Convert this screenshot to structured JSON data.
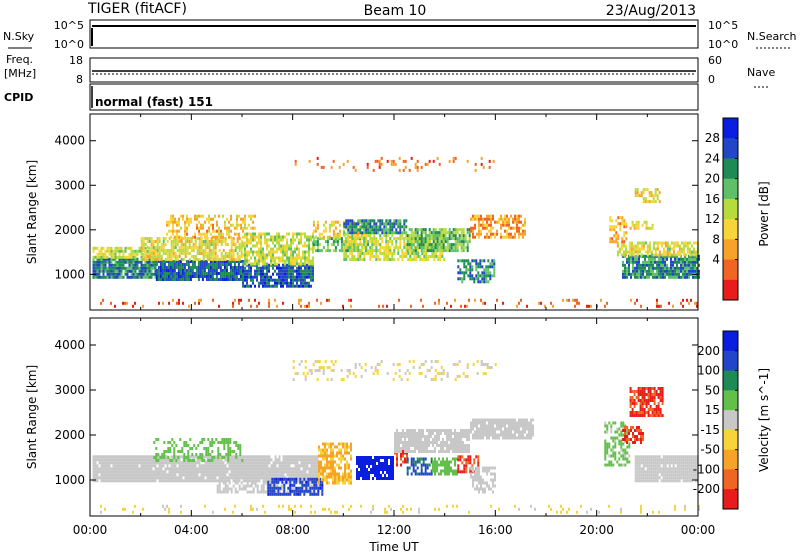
{
  "header": {
    "station": "TIGER (fitACF)",
    "beam": "Beam 10",
    "date": "23/Aug/2013"
  },
  "strips": {
    "nsky_label": "N.Sky",
    "nsky_ticks": [
      "10^5",
      "10^0"
    ],
    "nsearch_label": "N.Search",
    "nsearch_ticks": [
      "10^5",
      "10^0"
    ],
    "freq_label": "Freq.",
    "freq_unit": "[MHz]",
    "freq_ticks": [
      "18",
      "8"
    ],
    "nave_label": "Nave",
    "nave_ticks": [
      "60",
      "0"
    ],
    "cpid_label": "CPID",
    "cpid_value": "normal (fast) 151"
  },
  "chart_data": [
    {
      "type": "heatmap",
      "quantity": "Power",
      "ylabel": "Slant Range [km]",
      "xlabel": "",
      "xlim": [
        "00:00",
        "24:00"
      ],
      "ylim": [
        200,
        4600
      ],
      "yticks": [
        "1000",
        "2000",
        "3000",
        "4000"
      ],
      "colorbar": {
        "label": "Power [dB]",
        "ticks": [
          "28",
          "24",
          "20",
          "16",
          "12",
          "8",
          "4"
        ],
        "colors": [
          "#0a1ee0",
          "#2346c8",
          "#1e8a55",
          "#5fc06a",
          "#b6dc3c",
          "#f7d53a",
          "#f7a32a",
          "#f06424",
          "#e81c1a"
        ],
        "range": [
          0,
          30
        ]
      },
      "blobs": [
        {
          "t0": 0.1,
          "t1": 2.6,
          "r0": 900,
          "r1": 1350,
          "p": 22,
          "d": 0.9
        },
        {
          "t0": 0.1,
          "t1": 2.6,
          "r0": 1350,
          "r1": 1600,
          "p": 14,
          "d": 0.8
        },
        {
          "t0": 2.6,
          "t1": 6.0,
          "r0": 850,
          "r1": 1300,
          "p": 24,
          "d": 0.9
        },
        {
          "t0": 2.0,
          "t1": 6.0,
          "r0": 1300,
          "r1": 1800,
          "p": 13,
          "d": 0.75
        },
        {
          "t0": 3.0,
          "t1": 6.5,
          "r0": 1800,
          "r1": 2300,
          "p": 10,
          "d": 0.5
        },
        {
          "t0": 6.0,
          "t1": 8.8,
          "r0": 700,
          "r1": 1200,
          "p": 24,
          "d": 0.85
        },
        {
          "t0": 6.0,
          "t1": 8.8,
          "r0": 1200,
          "r1": 1900,
          "p": 14,
          "d": 0.7
        },
        {
          "t0": 8.8,
          "t1": 11.0,
          "r0": 1500,
          "r1": 1800,
          "p": 18,
          "d": 0.6
        },
        {
          "t0": 8.8,
          "t1": 11.0,
          "r0": 1800,
          "r1": 2200,
          "p": 12,
          "d": 0.6
        },
        {
          "t0": 10.0,
          "t1": 12.5,
          "r0": 1900,
          "r1": 2200,
          "p": 22,
          "d": 0.8
        },
        {
          "t0": 10.0,
          "t1": 14.0,
          "r0": 1300,
          "r1": 1900,
          "p": 14,
          "d": 0.7
        },
        {
          "t0": 12.5,
          "t1": 15.0,
          "r0": 1500,
          "r1": 2000,
          "p": 18,
          "d": 0.8
        },
        {
          "t0": 14.5,
          "t1": 16.0,
          "r0": 800,
          "r1": 1300,
          "p": 22,
          "d": 0.7
        },
        {
          "t0": 15.0,
          "t1": 17.2,
          "r0": 1800,
          "r1": 2300,
          "p": 8,
          "d": 0.6
        },
        {
          "t0": 21.0,
          "t1": 24.0,
          "r0": 900,
          "r1": 1400,
          "p": 22,
          "d": 0.85
        },
        {
          "t0": 20.8,
          "t1": 24.0,
          "r0": 1400,
          "r1": 1700,
          "p": 13,
          "d": 0.7
        },
        {
          "t0": 20.5,
          "t1": 21.2,
          "r0": 1700,
          "r1": 2300,
          "p": 9,
          "d": 0.5
        },
        {
          "t0": 21.3,
          "t1": 22.2,
          "r0": 2000,
          "r1": 2200,
          "p": 12,
          "d": 0.6
        },
        {
          "t0": 21.5,
          "t1": 22.5,
          "r0": 2600,
          "r1": 2900,
          "p": 12,
          "d": 0.6
        },
        {
          "t0": 8.0,
          "t1": 16.0,
          "r0": 3300,
          "r1": 3600,
          "p": 6,
          "d": 0.15
        },
        {
          "t0": 0.0,
          "t1": 24.0,
          "r0": 250,
          "r1": 450,
          "p": 5,
          "d": 0.12
        }
      ]
    },
    {
      "type": "heatmap",
      "quantity": "Velocity",
      "ylabel": "Slant Range [km]",
      "xlabel": "Time UT",
      "xlim": [
        "00:00",
        "24:00"
      ],
      "ylim": [
        200,
        4600
      ],
      "yticks": [
        "1000",
        "2000",
        "3000",
        "4000"
      ],
      "xticks": [
        "00:00",
        "04:00",
        "08:00",
        "12:00",
        "16:00",
        "20:00",
        "00:00"
      ],
      "colorbar": {
        "label": "Velocity [m s^-1]",
        "ticks": [
          "200",
          "100",
          "50",
          "15",
          "-15",
          "-50",
          "-100",
          "-200"
        ],
        "colors": [
          "#0a1ee0",
          "#2346c8",
          "#1e8a55",
          "#62c04a",
          "#c8c8c8",
          "#f7d53a",
          "#f7a32a",
          "#f06424",
          "#e81c1a"
        ],
        "range": [
          -250,
          250
        ]
      },
      "blobs": [
        {
          "t0": 0.1,
          "t1": 9.0,
          "r0": 950,
          "r1": 1500,
          "v": 0,
          "d": 0.95
        },
        {
          "t0": 5.0,
          "t1": 9.0,
          "r0": 700,
          "r1": 950,
          "v": 0,
          "d": 0.6
        },
        {
          "t0": 7.0,
          "t1": 9.2,
          "r0": 650,
          "r1": 1000,
          "v": 180,
          "d": 0.7
        },
        {
          "t0": 2.5,
          "t1": 6.0,
          "r0": 1400,
          "r1": 1900,
          "v": 60,
          "d": 0.4
        },
        {
          "t0": 9.0,
          "t1": 10.3,
          "r0": 900,
          "r1": 1800,
          "v": -90,
          "d": 0.7
        },
        {
          "t0": 10.5,
          "t1": 12.0,
          "r0": 1000,
          "r1": 1500,
          "v": 220,
          "d": 0.85
        },
        {
          "t0": 12.0,
          "t1": 12.5,
          "r0": 1300,
          "r1": 1700,
          "v": -200,
          "d": 0.6
        },
        {
          "t0": 12.0,
          "t1": 15.0,
          "r0": 1600,
          "r1": 2100,
          "v": 0,
          "d": 0.85
        },
        {
          "t0": 12.5,
          "t1": 13.5,
          "r0": 1100,
          "r1": 1500,
          "v": 150,
          "d": 0.6
        },
        {
          "t0": 13.5,
          "t1": 14.5,
          "r0": 1100,
          "r1": 1500,
          "v": 60,
          "d": 0.7
        },
        {
          "t0": 14.5,
          "t1": 15.3,
          "r0": 1150,
          "r1": 1550,
          "v": -200,
          "d": 0.7
        },
        {
          "t0": 15.0,
          "t1": 17.5,
          "r0": 1900,
          "r1": 2300,
          "v": 0,
          "d": 0.85
        },
        {
          "t0": 15.0,
          "t1": 16.0,
          "r0": 700,
          "r1": 1300,
          "v": 0,
          "d": 0.6
        },
        {
          "t0": 21.5,
          "t1": 24.0,
          "r0": 950,
          "r1": 1500,
          "v": 0,
          "d": 0.95
        },
        {
          "t0": 20.3,
          "t1": 21.3,
          "r0": 1300,
          "r1": 2300,
          "v": 40,
          "d": 0.5
        },
        {
          "t0": 21.0,
          "t1": 21.8,
          "r0": 1800,
          "r1": 2200,
          "v": -200,
          "d": 0.7
        },
        {
          "t0": 21.3,
          "t1": 22.6,
          "r0": 2400,
          "r1": 3000,
          "v": -200,
          "d": 0.75
        },
        {
          "t0": 8.0,
          "t1": 16.0,
          "r0": 3200,
          "r1": 3600,
          "v": -30,
          "d": 0.15
        },
        {
          "t0": 0.0,
          "t1": 24.0,
          "r0": 250,
          "r1": 450,
          "v": -40,
          "d": 0.1
        }
      ]
    }
  ]
}
